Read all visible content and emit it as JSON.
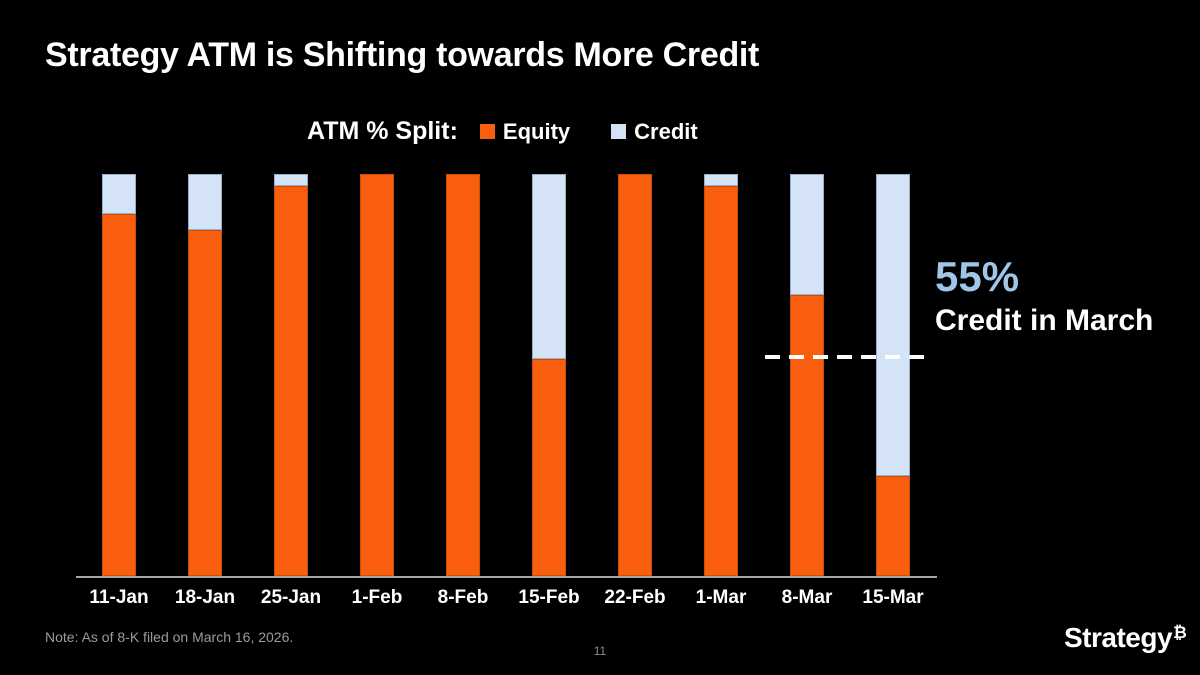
{
  "slide": {
    "title": "Strategy ATM is Shifting towards More Credit",
    "note": "Note: As of 8-K filed on March 16, 2026.",
    "page_number": "11",
    "logo": {
      "text": "Strategy",
      "mark": "₿"
    },
    "background": "#000000"
  },
  "legend": {
    "label": "ATM % Split:",
    "series": [
      {
        "name": "Equity",
        "color": "#F95E0E"
      },
      {
        "name": "Credit",
        "color": "#D5E3F7"
      }
    ]
  },
  "annotation": {
    "percent_label": "55%",
    "caption": "Credit in March",
    "line_value": 55,
    "percent_color": "#9FC5E8",
    "line_color": "#FFFFFF"
  },
  "chart_data": {
    "type": "bar",
    "stacked": true,
    "unit": "percent",
    "title": "ATM % Split",
    "categories": [
      "11-Jan",
      "18-Jan",
      "25-Jan",
      "1-Feb",
      "8-Feb",
      "15-Feb",
      "22-Feb",
      "1-Mar",
      "8-Mar",
      "15-Mar"
    ],
    "series": [
      {
        "name": "Equity",
        "color": "#F95E0E",
        "values": [
          90,
          86,
          97,
          100,
          100,
          54,
          100,
          97,
          70,
          25
        ]
      },
      {
        "name": "Credit",
        "color": "#D5E3F7",
        "values": [
          10,
          14,
          3,
          0,
          0,
          46,
          0,
          3,
          30,
          75
        ]
      }
    ],
    "ylim": [
      0,
      100
    ],
    "grid": false,
    "y_axis_visible": false,
    "legend_position": "top",
    "annotation_line": {
      "value": 55,
      "label": "55% Credit in March"
    }
  }
}
